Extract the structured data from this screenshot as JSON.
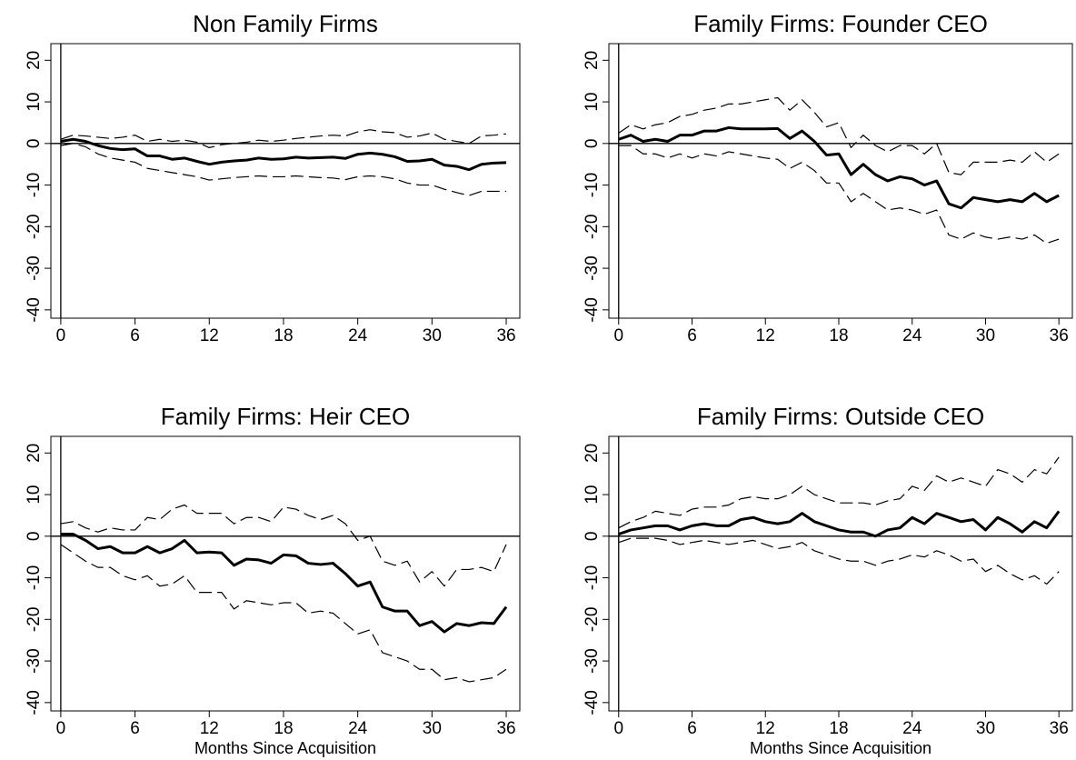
{
  "chart_data": [
    {
      "type": "line",
      "title": "Non Family Firms",
      "x": [
        0,
        1,
        2,
        3,
        4,
        5,
        6,
        7,
        8,
        9,
        10,
        11,
        12,
        13,
        14,
        15,
        16,
        17,
        18,
        19,
        20,
        21,
        22,
        23,
        24,
        25,
        26,
        27,
        28,
        29,
        30,
        31,
        32,
        33,
        34,
        35,
        36
      ],
      "xlim": [
        -0.8,
        37.1
      ],
      "ylim": [
        -42,
        24
      ],
      "xticks": [
        0,
        6,
        12,
        18,
        24,
        30,
        36
      ],
      "yticks": [
        -40,
        -30,
        -20,
        -10,
        0,
        10,
        20
      ],
      "reference_lines": {
        "x": 0,
        "y": 0
      },
      "series": [
        {
          "color": "#000000",
          "linestyle": "solid",
          "values": [
            0.5,
            1,
            0.5,
            -0.5,
            -1.2,
            -1.5,
            -1.3,
            -3,
            -3,
            -3.8,
            -3.5,
            -4.3,
            -5,
            -4.5,
            -4.2,
            -4,
            -3.5,
            -3.8,
            -3.7,
            -3.3,
            -3.5,
            -3.4,
            -3.3,
            -3.6,
            -2.6,
            -2.3,
            -2.6,
            -3.2,
            -4.3,
            -4.2,
            -3.8,
            -5.2,
            -5.5,
            -6.3,
            -5,
            -4.7,
            -4.6
          ]
        },
        {
          "color": "#000000",
          "linestyle": "dashed",
          "values": [
            1,
            2,
            1.8,
            1.5,
            1.2,
            1.5,
            2,
            0.5,
            1,
            0.5,
            0.8,
            0.3,
            -1,
            -0.3,
            0,
            0.3,
            0.8,
            0.5,
            0.8,
            1.2,
            1.5,
            1.8,
            2,
            1.8,
            2.8,
            3.3,
            2.8,
            2.6,
            1.5,
            1.8,
            2.5,
            1,
            0.5,
            0,
            1.8,
            2,
            2.3
          ]
        },
        {
          "color": "#000000",
          "linestyle": "dashed",
          "values": [
            -0.5,
            0,
            -0.8,
            -2.5,
            -3.5,
            -4,
            -4.5,
            -6,
            -6.5,
            -7,
            -7.5,
            -8,
            -8.8,
            -8.5,
            -8.2,
            -8,
            -7.8,
            -8,
            -8,
            -7.8,
            -8,
            -8.2,
            -8.3,
            -8.7,
            -8,
            -7.8,
            -8,
            -8.5,
            -9.5,
            -10,
            -10,
            -11,
            -11.8,
            -12.5,
            -11.5,
            -11.5,
            -11.5
          ]
        }
      ]
    },
    {
      "type": "line",
      "title": "Family Firms: Founder CEO",
      "x": [
        0,
        1,
        2,
        3,
        4,
        5,
        6,
        7,
        8,
        9,
        10,
        11,
        12,
        13,
        14,
        15,
        16,
        17,
        18,
        19,
        20,
        21,
        22,
        23,
        24,
        25,
        26,
        27,
        28,
        29,
        30,
        31,
        32,
        33,
        34,
        35,
        36
      ],
      "xlim": [
        -0.8,
        37.1
      ],
      "ylim": [
        -42,
        24
      ],
      "xticks": [
        0,
        6,
        12,
        18,
        24,
        30,
        36
      ],
      "yticks": [
        -40,
        -30,
        -20,
        -10,
        0,
        10,
        20
      ],
      "reference_lines": {
        "x": 0,
        "y": 0
      },
      "series": [
        {
          "color": "#000000",
          "linestyle": "solid",
          "values": [
            1,
            2,
            0.5,
            1,
            0.5,
            2,
            2,
            3,
            3,
            3.8,
            3.5,
            3.5,
            3.5,
            3.6,
            1.2,
            3,
            0.5,
            -2.8,
            -2.5,
            -7.5,
            -5,
            -7.5,
            -9,
            -8,
            -8.5,
            -10,
            -9,
            -14.5,
            -15.5,
            -13,
            -13.5,
            -14,
            -13.5,
            -14,
            -12,
            -14,
            -12.5
          ]
        },
        {
          "color": "#000000",
          "linestyle": "dashed",
          "values": [
            2.5,
            4.5,
            3.5,
            4.5,
            5,
            6.5,
            7,
            8,
            8.5,
            9.5,
            9.5,
            10,
            10.5,
            11,
            8,
            10.5,
            7.5,
            4,
            5,
            -1,
            2,
            -0.5,
            -2,
            -0.5,
            -0.5,
            -2.5,
            0,
            -7,
            -7.5,
            -4.5,
            -4.5,
            -4.5,
            -4,
            -4.5,
            -2,
            -4.5,
            -2.5
          ]
        },
        {
          "color": "#000000",
          "linestyle": "dashed",
          "values": [
            -0.5,
            -0.5,
            -2.5,
            -2.5,
            -3.5,
            -2.5,
            -3.5,
            -2.5,
            -3,
            -2,
            -2.5,
            -3,
            -3.5,
            -3.8,
            -6,
            -4.5,
            -6.5,
            -9.5,
            -9.5,
            -14,
            -12,
            -14,
            -16,
            -15.5,
            -16,
            -17,
            -16,
            -22,
            -23,
            -21.5,
            -22.5,
            -23,
            -22.5,
            -23,
            -22,
            -24,
            -23
          ]
        }
      ]
    },
    {
      "type": "line",
      "title": "Family Firms: Heir CEO",
      "xlabel": "Months Since Acquisition",
      "x": [
        0,
        1,
        2,
        3,
        4,
        5,
        6,
        7,
        8,
        9,
        10,
        11,
        12,
        13,
        14,
        15,
        16,
        17,
        18,
        19,
        20,
        21,
        22,
        23,
        24,
        25,
        26,
        27,
        28,
        29,
        30,
        31,
        32,
        33,
        34,
        35,
        36
      ],
      "xlim": [
        -0.8,
        37.1
      ],
      "ylim": [
        -42,
        24
      ],
      "xticks": [
        0,
        6,
        12,
        18,
        24,
        30,
        36
      ],
      "yticks": [
        -40,
        -30,
        -20,
        -10,
        0,
        10,
        20
      ],
      "reference_lines": {
        "x": 0,
        "y": 0
      },
      "series": [
        {
          "color": "#000000",
          "linestyle": "solid",
          "values": [
            0.5,
            0.5,
            -1,
            -3,
            -2.5,
            -4,
            -4,
            -2.5,
            -4,
            -3,
            -1,
            -4,
            -3.8,
            -4,
            -7,
            -5.5,
            -5.7,
            -6.5,
            -4.5,
            -4.7,
            -6.5,
            -6.8,
            -6.5,
            -9,
            -12,
            -11,
            -17,
            -18,
            -18,
            -21.5,
            -20.5,
            -23,
            -21,
            -21.5,
            -20.8,
            -21,
            -17
          ]
        },
        {
          "color": "#000000",
          "linestyle": "dashed",
          "values": [
            3,
            3.5,
            2,
            1,
            2,
            1.5,
            1.5,
            4.5,
            4,
            6.5,
            7.5,
            5.5,
            5.5,
            5.5,
            3,
            4.5,
            4.5,
            3.5,
            7,
            6.5,
            5,
            4,
            5,
            3,
            -1,
            0,
            -6,
            -7,
            -6,
            -11,
            -8.5,
            -12,
            -8,
            -8,
            -7.5,
            -8.5,
            -2
          ]
        },
        {
          "color": "#000000",
          "linestyle": "dashed",
          "values": [
            -2,
            -4,
            -6,
            -7.5,
            -7.5,
            -9.5,
            -10.5,
            -9.5,
            -12,
            -11.5,
            -9.5,
            -13.5,
            -13.5,
            -13.5,
            -17.5,
            -15.5,
            -16,
            -16.5,
            -16,
            -16,
            -18.5,
            -18,
            -18.5,
            -21,
            -23.5,
            -22.5,
            -28,
            -29,
            -30,
            -32,
            -32,
            -34.5,
            -34,
            -35,
            -34.5,
            -34,
            -32
          ]
        }
      ]
    },
    {
      "type": "line",
      "title": "Family Firms: Outside CEO",
      "xlabel": "Months Since Acquisition",
      "x": [
        0,
        1,
        2,
        3,
        4,
        5,
        6,
        7,
        8,
        9,
        10,
        11,
        12,
        13,
        14,
        15,
        16,
        17,
        18,
        19,
        20,
        21,
        22,
        23,
        24,
        25,
        26,
        27,
        28,
        29,
        30,
        31,
        32,
        33,
        34,
        35,
        36
      ],
      "xlim": [
        -0.8,
        37.1
      ],
      "ylim": [
        -42,
        24
      ],
      "xticks": [
        0,
        6,
        12,
        18,
        24,
        30,
        36
      ],
      "yticks": [
        -40,
        -30,
        -20,
        -10,
        0,
        10,
        20
      ],
      "reference_lines": {
        "x": 0,
        "y": 0
      },
      "series": [
        {
          "color": "#000000",
          "linestyle": "solid",
          "values": [
            0.5,
            1.5,
            2,
            2.5,
            2.5,
            1.5,
            2.5,
            3,
            2.5,
            2.5,
            4,
            4.5,
            3.5,
            3,
            3.5,
            5.5,
            3.5,
            2.5,
            1.5,
            1,
            1,
            0,
            1.5,
            2,
            4.5,
            3,
            5.5,
            4.5,
            3.5,
            4,
            1.5,
            4.5,
            3,
            1,
            3.5,
            2,
            6
          ]
        },
        {
          "color": "#000000",
          "linestyle": "dashed",
          "values": [
            2,
            3.5,
            4.5,
            6,
            5.5,
            5,
            6.5,
            7,
            7,
            7.5,
            9,
            9.5,
            9,
            9,
            10,
            12,
            10,
            9,
            8,
            8,
            8,
            7.5,
            8.5,
            9,
            12,
            11,
            14.5,
            13,
            14,
            13,
            12,
            16,
            15,
            13,
            16,
            15,
            19
          ]
        },
        {
          "color": "#000000",
          "linestyle": "dashed",
          "values": [
            -1.5,
            -0.5,
            -0.5,
            -0.5,
            -1,
            -2,
            -1.5,
            -1,
            -1.5,
            -2,
            -1.5,
            -1,
            -2,
            -3,
            -2.5,
            -1.5,
            -3.5,
            -4.5,
            -5.5,
            -6,
            -6,
            -7,
            -6,
            -5.5,
            -4.5,
            -5,
            -3.5,
            -4.5,
            -6,
            -5.5,
            -8.5,
            -7,
            -9,
            -10.5,
            -9.5,
            -11.5,
            -8.5
          ]
        }
      ]
    }
  ]
}
